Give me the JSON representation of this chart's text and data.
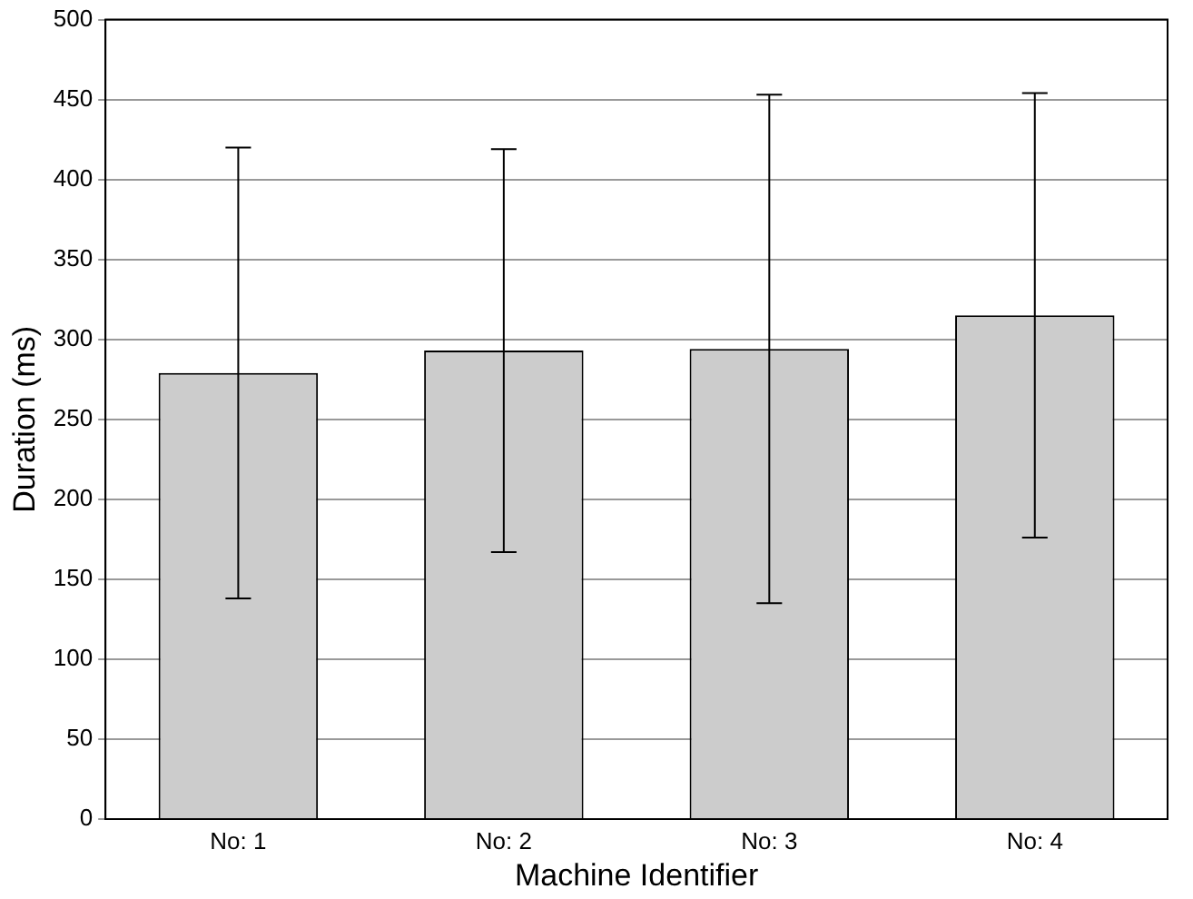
{
  "chart_data": {
    "type": "bar",
    "xlabel": "Machine Identifier",
    "ylabel": "Duration (ms)",
    "categories": [
      "No: 1",
      "No: 2",
      "No: 3",
      "No: 4"
    ],
    "values": [
      279,
      293,
      294,
      315
    ],
    "errors": [
      141,
      126,
      159,
      139
    ],
    "color": "#cccccc",
    "ylim": [
      0,
      500
    ],
    "yticks": [
      0,
      50,
      100,
      150,
      200,
      250,
      300,
      350,
      400,
      450,
      500
    ],
    "grid": "y",
    "legend": false
  }
}
